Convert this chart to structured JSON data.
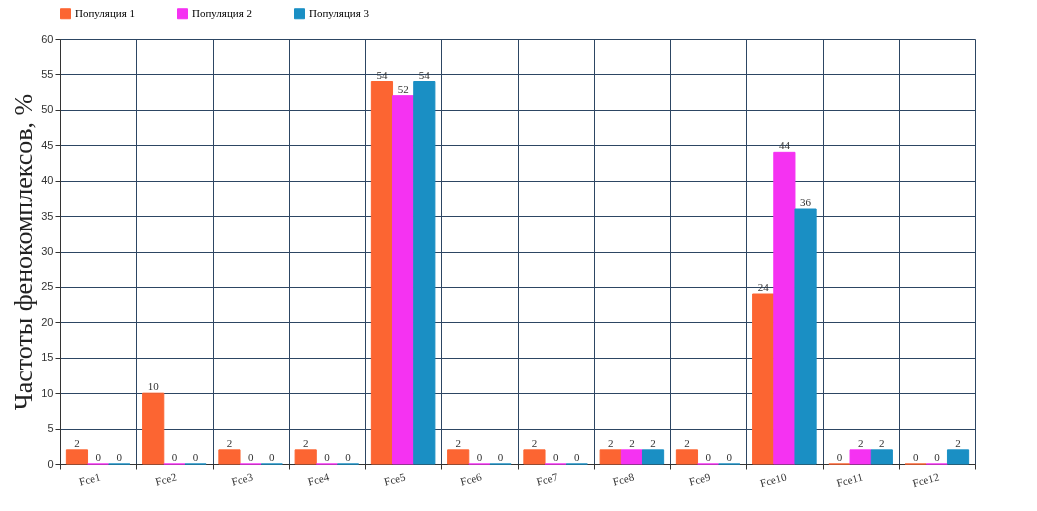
{
  "chart_data": {
    "type": "bar",
    "ylabel": "Частоты фенокомплексов, %",
    "categories": [
      "Fce1",
      "Fce2",
      "Fce3",
      "Fce4",
      "Fce5",
      "Fce6",
      "Fce7",
      "Fce8",
      "Fce9",
      "Fce10",
      "Fce11",
      "Fce12"
    ],
    "series": [
      {
        "name": "Популяция 1",
        "color": "#fc6532",
        "values": [
          2,
          10,
          2,
          2,
          54,
          2,
          2,
          2,
          2,
          24,
          0,
          0
        ]
      },
      {
        "name": "Популяция 2",
        "color": "#f532f2",
        "values": [
          0,
          0,
          0,
          0,
          52,
          0,
          0,
          2,
          0,
          44,
          2,
          0
        ]
      },
      {
        "name": "Популяция 3",
        "color": "#1a8fc4",
        "values": [
          0,
          0,
          0,
          0,
          54,
          0,
          0,
          2,
          0,
          36,
          2,
          2
        ]
      }
    ],
    "ylim": [
      0,
      60
    ],
    "yticks": [
      0,
      5,
      10,
      15,
      20,
      25,
      30,
      35,
      40,
      45,
      50,
      55,
      60
    ],
    "grid": true,
    "legend": "top left",
    "data_labels": true
  }
}
